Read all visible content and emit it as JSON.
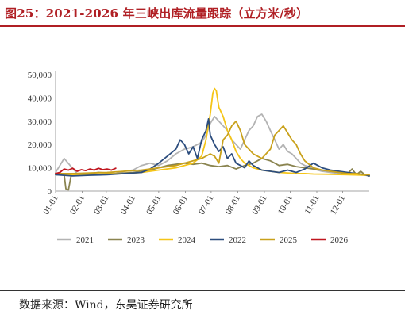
{
  "title": "图25：2021-2026 年三峡出库流量跟踪（立方米/秒）",
  "source": "数据来源：Wind，东吴证券研究所",
  "chart_data": {
    "type": "line",
    "title": "",
    "xlabel": "",
    "ylabel": "",
    "ylim": [
      0,
      50000
    ],
    "yticks": [
      0,
      10000,
      20000,
      30000,
      40000,
      50000
    ],
    "ytick_labels": [
      "0",
      "10,000",
      "20,000",
      "30,000",
      "40,000",
      "50,000"
    ],
    "xticks": [
      "01-01",
      "02-01",
      "03-01",
      "04-01",
      "05-01",
      "06-01",
      "07-01",
      "08-01",
      "09-01",
      "10-01",
      "11-01",
      "12-01"
    ],
    "xtick_days": [
      0,
      31,
      59,
      90,
      120,
      151,
      181,
      212,
      243,
      273,
      304,
      334
    ],
    "x_range_days": [
      0,
      365
    ],
    "grid": false,
    "legend_position": "bottom",
    "series": [
      {
        "name": "2021",
        "color": "#b3b3b3",
        "x": [
          0,
          10,
          25,
          40,
          55,
          70,
          80,
          90,
          100,
          110,
          120,
          130,
          140,
          150,
          160,
          170,
          175,
          180,
          185,
          190,
          195,
          200,
          205,
          210,
          215,
          220,
          225,
          230,
          235,
          240,
          245,
          250,
          255,
          260,
          265,
          270,
          275,
          280,
          285,
          290,
          295,
          300,
          310,
          320,
          330,
          340,
          350,
          360,
          365
        ],
        "values": [
          8000,
          14000,
          7500,
          7000,
          7200,
          7500,
          8500,
          9000,
          11000,
          12000,
          11000,
          13000,
          16000,
          18000,
          19000,
          21000,
          24000,
          29000,
          32000,
          30000,
          28000,
          26000,
          22000,
          20000,
          18000,
          22000,
          26000,
          28000,
          32000,
          33000,
          30000,
          26000,
          22000,
          18000,
          20000,
          17000,
          16000,
          14000,
          12000,
          11000,
          10500,
          9500,
          8500,
          8000,
          7500,
          7200,
          7000,
          6800,
          6500
        ]
      },
      {
        "name": "2023",
        "color": "#8a8450",
        "x": [
          0,
          10,
          12,
          15,
          18,
          20,
          30,
          40,
          50,
          60,
          70,
          80,
          90,
          100,
          110,
          120,
          130,
          140,
          150,
          160,
          170,
          180,
          190,
          200,
          210,
          220,
          230,
          240,
          250,
          260,
          270,
          280,
          290,
          300,
          310,
          320,
          330,
          340,
          345,
          350,
          355,
          360,
          365
        ],
        "values": [
          7500,
          7000,
          1000,
          500,
          6500,
          7000,
          7200,
          7500,
          8000,
          7800,
          7500,
          7800,
          8000,
          8500,
          9000,
          10000,
          11000,
          11500,
          12000,
          11500,
          12000,
          11000,
          10500,
          11000,
          9500,
          11000,
          12000,
          14000,
          13000,
          11000,
          11500,
          10500,
          10000,
          9500,
          9000,
          8500,
          8000,
          7500,
          9500,
          7000,
          8500,
          7000,
          6500
        ]
      },
      {
        "name": "2024",
        "color": "#f5c518",
        "x": [
          0,
          20,
          40,
          60,
          80,
          100,
          120,
          140,
          160,
          170,
          175,
          180,
          183,
          185,
          187,
          190,
          195,
          200,
          205,
          210,
          215,
          220,
          225,
          230,
          240,
          250,
          260,
          270,
          280,
          290,
          300,
          320,
          340,
          360,
          365
        ],
        "values": [
          7000,
          7000,
          7200,
          7300,
          7500,
          8000,
          9000,
          10000,
          12000,
          15000,
          22000,
          33000,
          42000,
          44000,
          43000,
          36000,
          32000,
          26000,
          22000,
          17000,
          14000,
          12000,
          11000,
          10000,
          9000,
          8500,
          8000,
          7800,
          7500,
          7500,
          7300,
          7200,
          7000,
          6800,
          6800
        ]
      },
      {
        "name": "2022",
        "color": "#2c4d7e",
        "x": [
          0,
          20,
          40,
          60,
          80,
          100,
          110,
          120,
          130,
          140,
          145,
          150,
          155,
          160,
          165,
          170,
          175,
          178,
          180,
          185,
          190,
          195,
          200,
          205,
          210,
          215,
          220,
          225,
          230,
          240,
          250,
          260,
          270,
          280,
          290,
          300,
          310,
          320,
          330,
          340,
          350,
          360,
          365
        ],
        "values": [
          7000,
          6500,
          6800,
          7000,
          7500,
          8000,
          9500,
          12000,
          15000,
          18000,
          22000,
          20000,
          16000,
          19000,
          14000,
          22000,
          26000,
          31000,
          24000,
          20000,
          17000,
          19000,
          14000,
          16000,
          12000,
          11000,
          10000,
          13000,
          11000,
          9000,
          8500,
          8000,
          9000,
          8000,
          9500,
          12000,
          10000,
          9000,
          8500,
          8000,
          7500,
          7000,
          6500
        ]
      },
      {
        "name": "2025",
        "color": "#c9a11b",
        "x": [
          0,
          20,
          40,
          60,
          80,
          100,
          120,
          140,
          150,
          160,
          170,
          180,
          185,
          190,
          195,
          200,
          205,
          210,
          215,
          220,
          225,
          230,
          240,
          250,
          255,
          260,
          265,
          270,
          275,
          280,
          285,
          290,
          300,
          310,
          320,
          330,
          340,
          350,
          360,
          365
        ],
        "values": [
          7500,
          7500,
          7800,
          8000,
          8500,
          9000,
          10000,
          11000,
          12000,
          13000,
          14000,
          16000,
          15000,
          12000,
          22000,
          24000,
          28000,
          30000,
          26000,
          20000,
          18000,
          16000,
          14000,
          18000,
          24000,
          26000,
          28000,
          25000,
          22000,
          20000,
          16000,
          13000,
          10000,
          9000,
          8500,
          8000,
          7500,
          7500,
          7000,
          7000
        ]
      },
      {
        "name": "2026",
        "color": "#c0161f",
        "x": [
          0,
          5,
          10,
          15,
          20,
          25,
          30,
          35,
          40,
          45,
          50,
          55,
          60,
          65,
          70
        ],
        "values": [
          7500,
          8000,
          9500,
          9000,
          9800,
          8500,
          9200,
          8800,
          9500,
          9000,
          9800,
          9200,
          9500,
          9000,
          9800
        ]
      }
    ]
  }
}
